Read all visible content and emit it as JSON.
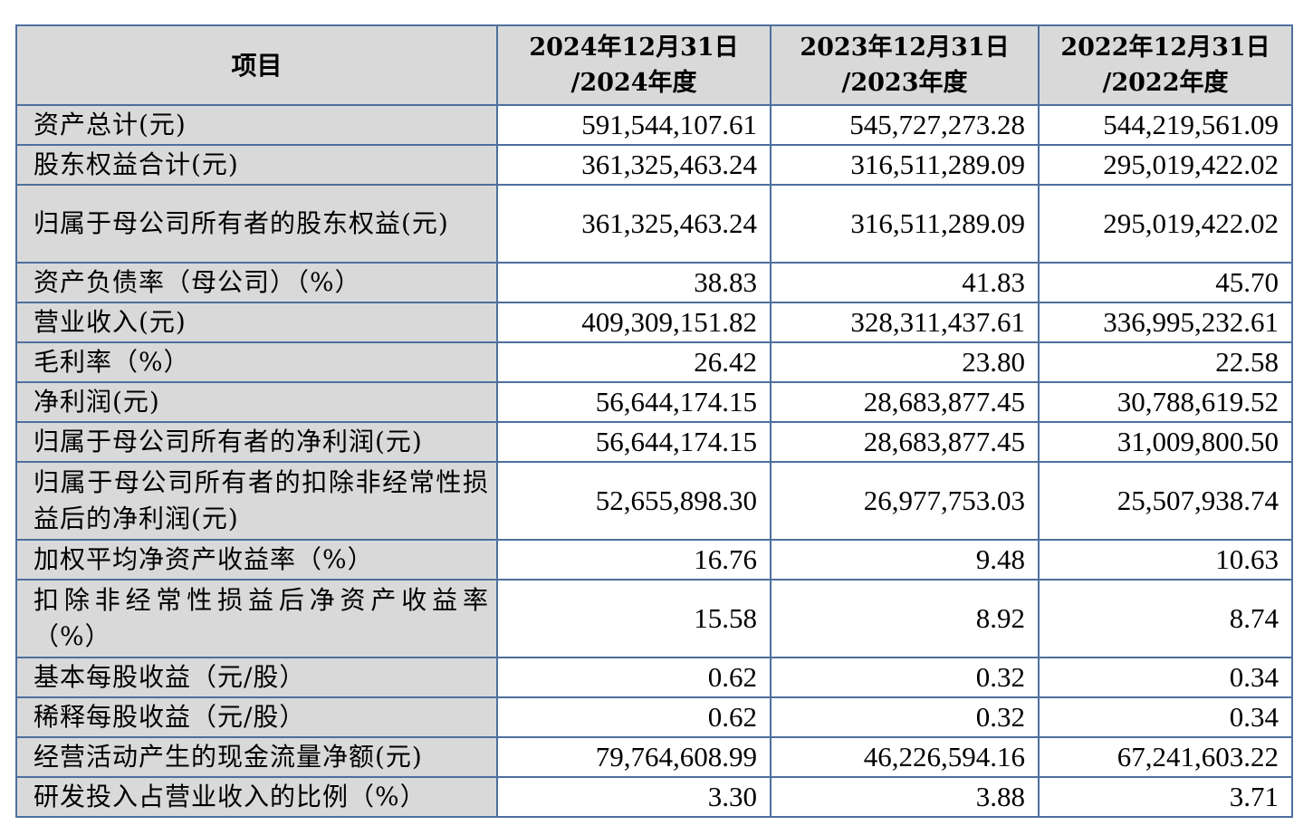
{
  "table": {
    "header": {
      "item": "项目",
      "years": [
        {
          "line1": "2024年12月31日",
          "line2": "/2024年度"
        },
        {
          "line1": "2023年12月31日",
          "line2": "/2023年度"
        },
        {
          "line1": "2022年12月31日",
          "line2": "/2022年度"
        }
      ]
    },
    "rows": [
      {
        "label": "资产总计(元)",
        "values": [
          "591,544,107.61",
          "545,727,273.28",
          "544,219,561.09"
        ]
      },
      {
        "label": "股东权益合计(元)",
        "values": [
          "361,325,463.24",
          "316,511,289.09",
          "295,019,422.02"
        ]
      },
      {
        "label": "归属于母公司所有者的股东权益(元)",
        "values": [
          "361,325,463.24",
          "316,511,289.09",
          "295,019,422.02"
        ]
      },
      {
        "label": "资产负债率（母公司）（%）",
        "values": [
          "38.83",
          "41.83",
          "45.70"
        ]
      },
      {
        "label": "营业收入(元)",
        "values": [
          "409,309,151.82",
          "328,311,437.61",
          "336,995,232.61"
        ]
      },
      {
        "label": "毛利率（%）",
        "values": [
          "26.42",
          "23.80",
          "22.58"
        ]
      },
      {
        "label": "净利润(元)",
        "values": [
          "56,644,174.15",
          "28,683,877.45",
          "30,788,619.52"
        ]
      },
      {
        "label": "归属于母公司所有者的净利润(元)",
        "values": [
          "56,644,174.15",
          "28,683,877.45",
          "31,009,800.50"
        ]
      },
      {
        "label": "归属于母公司所有者的扣除非经常性损益后的净利润(元)",
        "values": [
          "52,655,898.30",
          "26,977,753.03",
          "25,507,938.74"
        ]
      },
      {
        "label": "加权平均净资产收益率（%）",
        "values": [
          "16.76",
          "9.48",
          "10.63"
        ]
      },
      {
        "label": "扣除非经常性损益后净资产收益率（%）",
        "values": [
          "15.58",
          "8.92",
          "8.74"
        ]
      },
      {
        "label": "基本每股收益（元/股）",
        "values": [
          "0.62",
          "0.32",
          "0.34"
        ]
      },
      {
        "label": "稀释每股收益（元/股）",
        "values": [
          "0.62",
          "0.32",
          "0.34"
        ]
      },
      {
        "label": "经营活动产生的现金流量净额(元)",
        "values": [
          "79,764,608.99",
          "46,226,594.16",
          "67,241,603.22"
        ]
      },
      {
        "label": "研发投入占营业收入的比例（%）",
        "values": [
          "3.30",
          "3.88",
          "3.71"
        ]
      }
    ]
  },
  "colors": {
    "border": "#4e6f9c",
    "label_background": "#d9d9d9",
    "value_background": "#ffffff"
  }
}
